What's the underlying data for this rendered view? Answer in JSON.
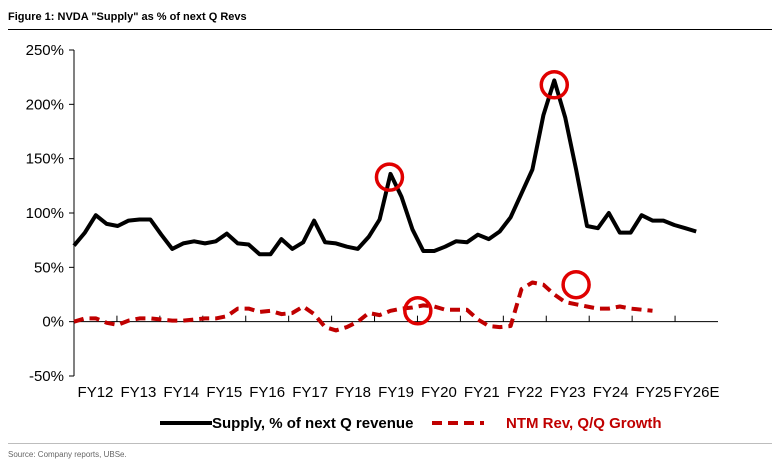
{
  "header": {
    "title": "Figure 1: NVDA \"Supply\" as % of next Q Revs"
  },
  "footer": {
    "source": "Source: Company reports, UBSe."
  },
  "colors": {
    "supply": "#000000",
    "growth": "#c00000",
    "circle": "#e00000",
    "axis": "#000000"
  },
  "chart_data": {
    "type": "line",
    "title": "Figure 1: NVDA \"Supply\" as % of next Q Revs",
    "xlabel": "",
    "ylabel": "",
    "ylim": [
      -50,
      250
    ],
    "y_ticks": [
      "250%",
      "200%",
      "150%",
      "100%",
      "50%",
      "0%",
      "-50%"
    ],
    "y_tick_values": [
      250,
      200,
      150,
      100,
      50,
      0,
      -50
    ],
    "categories": [
      "FY12",
      "FY13",
      "FY14",
      "FY15",
      "FY16",
      "FY17",
      "FY18",
      "FY19",
      "FY20",
      "FY21",
      "FY22",
      "FY23",
      "FY24",
      "FY25",
      "FY26E"
    ],
    "x_range": [
      0,
      59
    ],
    "grid": false,
    "legend_position": "bottom",
    "series": [
      {
        "name": "Supply, % of next Q revenue",
        "style": "solid",
        "color": "#000000",
        "x": [
          0,
          1,
          2,
          3,
          4,
          5,
          6,
          7,
          8,
          9,
          10,
          11,
          12,
          13,
          14,
          15,
          16,
          17,
          18,
          19,
          20,
          21,
          22,
          23,
          24,
          25,
          26,
          27,
          28,
          29,
          30,
          31,
          32,
          33,
          34,
          35,
          36,
          37,
          38,
          39,
          40,
          41,
          42,
          43,
          44,
          45,
          46,
          47,
          48,
          49,
          50,
          51,
          52,
          53,
          54,
          55,
          56,
          57,
          58
        ],
        "values": [
          70,
          82,
          98,
          90,
          88,
          93,
          94,
          94,
          80,
          67,
          72,
          74,
          72,
          74,
          81,
          72,
          71,
          62,
          62,
          76,
          67,
          73,
          93,
          73,
          72,
          69,
          67,
          78,
          94,
          136,
          115,
          85,
          65,
          65,
          69,
          74,
          73,
          80,
          76,
          83,
          96,
          118,
          140,
          190,
          222,
          188,
          140,
          88,
          86,
          100,
          82,
          82,
          98,
          93,
          93,
          89,
          86,
          83,
          null
        ]
      },
      {
        "name": "NTM Rev, Q/Q Growth",
        "style": "dashed",
        "color": "#c00000",
        "x": [
          0,
          1,
          2,
          3,
          4,
          5,
          6,
          7,
          8,
          9,
          10,
          11,
          12,
          13,
          14,
          15,
          16,
          17,
          18,
          19,
          20,
          21,
          22,
          23,
          24,
          25,
          26,
          27,
          28,
          29,
          30,
          31,
          32,
          33,
          34,
          35,
          36,
          37,
          38,
          39,
          40,
          41,
          42,
          43,
          44,
          45,
          46,
          47,
          48,
          49,
          50,
          51,
          52,
          53,
          54,
          55,
          56,
          57,
          58
        ],
        "values": [
          0,
          3,
          3,
          -1,
          -3,
          1,
          3,
          3,
          2,
          1,
          1,
          2,
          3,
          3,
          5,
          12,
          12,
          9,
          10,
          7,
          8,
          14,
          7,
          -5,
          -8,
          -5,
          0,
          8,
          6,
          10,
          12,
          13,
          15,
          14,
          11,
          11,
          11,
          2,
          -4,
          -5,
          -4,
          30,
          36,
          34,
          25,
          18,
          16,
          14,
          12,
          12,
          14,
          12,
          11,
          10,
          null,
          null,
          null,
          null,
          null
        ]
      }
    ],
    "annotations": [
      {
        "type": "circle",
        "x": 28.9,
        "y": 133
      },
      {
        "type": "circle",
        "x": 44,
        "y": 218
      },
      {
        "type": "circle",
        "x": 31.5,
        "y": 10
      },
      {
        "type": "circle",
        "x": 46,
        "y": 34
      }
    ]
  }
}
